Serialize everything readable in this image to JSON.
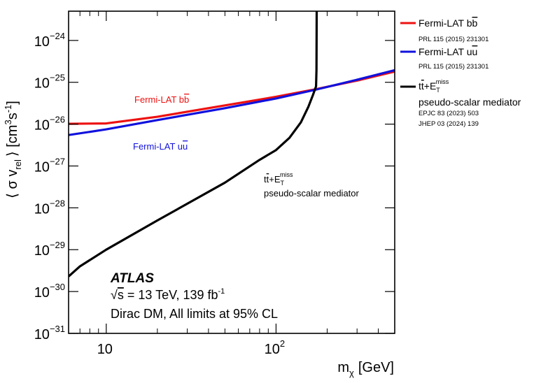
{
  "chart_data": {
    "type": "line",
    "title": "",
    "xscale": "log",
    "yscale": "log",
    "xlim": [
      6,
      500
    ],
    "ylim": [
      1e-31,
      5e-24
    ],
    "xlabel": {
      "base": "m",
      "sub": "χ",
      "unit": "[GeV]"
    },
    "ylabel": {
      "prefix": "⟨ σ v",
      "sub": "rel",
      "mid": "⟩ [cm",
      "sup1": "3",
      "mid2": "s",
      "sup2": "-1",
      "suffix": "]"
    },
    "x_ticks": [
      {
        "value": 10,
        "base": "10",
        "exp": ""
      },
      {
        "value": 100,
        "base": "10",
        "exp": "2"
      }
    ],
    "y_ticks": [
      {
        "value": 1e-24,
        "base": "10",
        "exp": "−24"
      },
      {
        "value": 1e-25,
        "base": "10",
        "exp": "−25"
      },
      {
        "value": 1e-26,
        "base": "10",
        "exp": "−26"
      },
      {
        "value": 1e-27,
        "base": "10",
        "exp": "−27"
      },
      {
        "value": 1e-28,
        "base": "10",
        "exp": "−28"
      },
      {
        "value": 1e-29,
        "base": "10",
        "exp": "−29"
      },
      {
        "value": 1e-30,
        "base": "10",
        "exp": "−30"
      },
      {
        "value": 1e-31,
        "base": "10",
        "exp": "−31"
      }
    ],
    "series": [
      {
        "name": "Fermi-LAT bb̄",
        "color": "#ee1111",
        "points": [
          [
            6,
            1.02e-26
          ],
          [
            10,
            1.04e-26
          ],
          [
            20,
            1.5e-26
          ],
          [
            50,
            2.8e-26
          ],
          [
            100,
            4.5e-26
          ],
          [
            170,
            6.8e-26
          ],
          [
            300,
            1.1e-25
          ],
          [
            500,
            1.8e-25
          ]
        ]
      },
      {
        "name": "Fermi-LAT uū",
        "color": "#1111dd",
        "points": [
          [
            6,
            5.5e-27
          ],
          [
            10,
            7.5e-27
          ],
          [
            20,
            1.25e-26
          ],
          [
            50,
            2.4e-26
          ],
          [
            100,
            4.1e-26
          ],
          [
            170,
            6.6e-26
          ],
          [
            300,
            1.15e-25
          ],
          [
            500,
            1.95e-25
          ]
        ]
      },
      {
        "name": "tt̄+E_T^miss pseudo-scalar mediator",
        "color": "#000000",
        "points": [
          [
            6,
            2.3e-30
          ],
          [
            7,
            4e-30
          ],
          [
            10,
            1e-29
          ],
          [
            20,
            5e-29
          ],
          [
            50,
            4e-28
          ],
          [
            80,
            1.4e-27
          ],
          [
            100,
            2.4e-27
          ],
          [
            120,
            4.7e-27
          ],
          [
            140,
            1.1e-26
          ],
          [
            155,
            2.6e-26
          ],
          [
            165,
            5e-26
          ],
          [
            172,
            8e-26
          ],
          [
            173,
            2e-25
          ],
          [
            173.5,
            5e-24
          ]
        ]
      }
    ],
    "annotations": {
      "fermi_bb": {
        "base": "Fermi-LAT b",
        "bar": "b"
      },
      "fermi_uu": {
        "base": "Fermi-LAT u",
        "bar": "u"
      },
      "ttbar": {
        "t": "t",
        "tbar": "t",
        "plus": "+E",
        "sub": "T",
        "sup": "miss",
        "line2": "pseudo-scalar mediator"
      }
    },
    "legend": {
      "placement": "outside-right",
      "entries": [
        {
          "color": "#ee1111",
          "base": "Fermi-LAT b",
          "bar": "b",
          "refs": [
            "PRL 115 (2015) 231301"
          ]
        },
        {
          "color": "#1111dd",
          "base": "Fermi-LAT u",
          "bar": "u",
          "refs": [
            "PRL 115 (2015) 231301"
          ]
        },
        {
          "color": "#000000",
          "t": "t",
          "tbar": "t",
          "plus": "+E",
          "sub": "T",
          "sup": "miss",
          "line2": "pseudo-scalar mediator",
          "refs": [
            "EPJC 83 (2023) 503",
            "JHEP 03 (2024) 139"
          ]
        }
      ]
    },
    "info": {
      "experiment": "ATLAS",
      "energy_sqrt": "√",
      "energy_s": "s",
      "energy_rest": " = 13 TeV, 139 fb",
      "energy_sup": "-1",
      "model": "Dirac DM, All limits at 95% CL"
    }
  }
}
